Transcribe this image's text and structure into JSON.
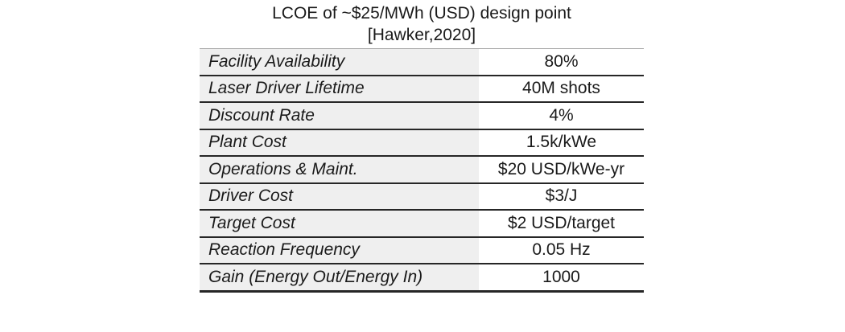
{
  "figure": {
    "title_line1": "LCOE of ~$25/MWh (USD) design point",
    "title_line2": "[Hawker,2020]"
  },
  "chart_data": {
    "type": "table",
    "title": "LCOE of ~$25/MWh (USD) design point [Hawker,2020]",
    "rows": [
      {
        "label": "Facility Availability",
        "value": "80%"
      },
      {
        "label": "Laser Driver Lifetime",
        "value": "40M shots"
      },
      {
        "label": "Discount Rate",
        "value": "4%"
      },
      {
        "label": "Plant Cost",
        "value": "1.5k/kWe"
      },
      {
        "label": "Operations & Maint.",
        "value": "$20 USD/kWe-yr"
      },
      {
        "label": "Driver Cost",
        "value": "$3/J"
      },
      {
        "label": "Target Cost",
        "value": "$2 USD/target"
      },
      {
        "label": "Reaction Frequency",
        "value": "0.05 Hz"
      },
      {
        "label": "Gain (Energy Out/Energy In)",
        "value": "1000"
      }
    ],
    "layout": {
      "label_column_bg": "#efefef",
      "separator_color": "#262626",
      "top_border_color": "#a6a6a6",
      "text_color": "#1a1a1a",
      "label_column_style": "italic",
      "value_alignment": "center"
    }
  }
}
